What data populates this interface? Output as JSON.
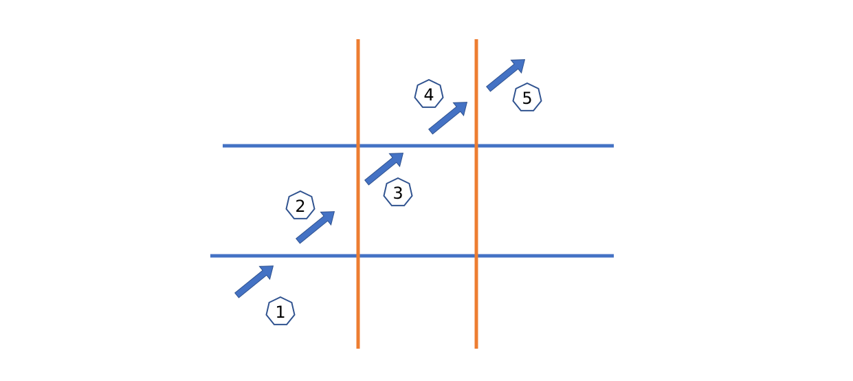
{
  "colors": {
    "horizontal_line": "#4472c4",
    "vertical_line": "#ed7d31",
    "arrow_fill": "#4472c4",
    "arrow_stroke": "#2f528f",
    "badge_stroke": "#2f528f",
    "badge_fill": "#ffffff",
    "label_text": "#000000"
  },
  "steps": [
    {
      "label": "1"
    },
    {
      "label": "2"
    },
    {
      "label": "3"
    },
    {
      "label": "4"
    },
    {
      "label": "5"
    }
  ]
}
